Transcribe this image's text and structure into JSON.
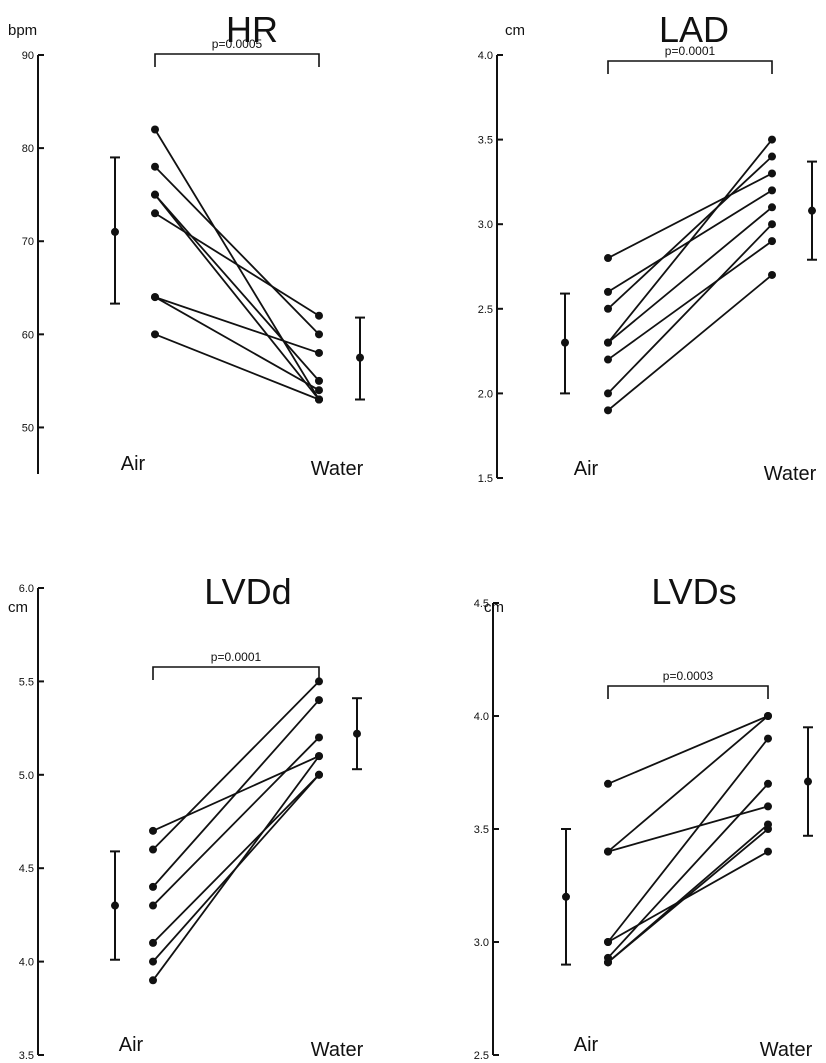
{
  "chart_data": [
    {
      "type": "line",
      "title": "HR",
      "ylabel": "bpm",
      "ylim": [
        45,
        90
      ],
      "yticks": [
        "90",
        "80",
        "70",
        "60",
        "50"
      ],
      "categories": [
        "Air",
        "Water"
      ],
      "p_value": "p=0.0005",
      "pairs": [
        [
          82,
          53
        ],
        [
          78,
          60
        ],
        [
          75,
          55
        ],
        [
          75,
          53
        ],
        [
          73,
          62
        ],
        [
          64,
          58
        ],
        [
          64,
          54
        ],
        [
          60,
          53
        ]
      ],
      "mean_sd": {
        "air": {
          "mean": 71,
          "low": 63.3,
          "high": 79
        },
        "water": {
          "mean": 57.5,
          "low": 53,
          "high": 61.8
        }
      }
    },
    {
      "type": "line",
      "title": "LAD",
      "ylabel": "cm",
      "ylim": [
        1.5,
        4.0
      ],
      "yticks": [
        "4.0",
        "3.5",
        "3.0",
        "2.5",
        "2.0",
        "1.5"
      ],
      "categories": [
        "Air",
        "Water"
      ],
      "p_value": "p=0.0001",
      "pairs": [
        [
          2.8,
          3.3
        ],
        [
          2.6,
          3.2
        ],
        [
          2.5,
          3.4
        ],
        [
          2.3,
          3.5
        ],
        [
          2.3,
          3.1
        ],
        [
          2.2,
          2.9
        ],
        [
          2.0,
          3.0
        ],
        [
          1.9,
          2.7
        ]
      ],
      "mean_sd": {
        "air": {
          "mean": 2.3,
          "low": 2.0,
          "high": 2.59
        },
        "water": {
          "mean": 3.08,
          "low": 2.79,
          "high": 3.37
        }
      }
    },
    {
      "type": "line",
      "title": "LVDd",
      "ylabel": "cm",
      "ylim": [
        3.5,
        6.0
      ],
      "yticks": [
        "6.0",
        "5.5",
        "5.0",
        "4.5",
        "4.0",
        "3.5"
      ],
      "categories": [
        "Air",
        "Water"
      ],
      "p_value": "p=0.0001",
      "pairs": [
        [
          4.7,
          5.1
        ],
        [
          4.6,
          5.5
        ],
        [
          4.4,
          5.4
        ],
        [
          4.3,
          5.2
        ],
        [
          4.1,
          5.0
        ],
        [
          4.0,
          5.0
        ],
        [
          3.9,
          5.1
        ]
      ],
      "mean_sd": {
        "air": {
          "mean": 4.3,
          "low": 4.01,
          "high": 4.59
        },
        "water": {
          "mean": 5.22,
          "low": 5.03,
          "high": 5.41
        }
      }
    },
    {
      "type": "line",
      "title": "LVDs",
      "ylabel": "cm",
      "ylim": [
        2.5,
        4.5
      ],
      "yticks": [
        "4.5",
        "4.0",
        "3.5",
        "3.0",
        "2.5"
      ],
      "categories": [
        "Air",
        "Water"
      ],
      "p_value": "p=0.0003",
      "pairs": [
        [
          3.7,
          4.0
        ],
        [
          3.4,
          4.0
        ],
        [
          3.4,
          3.6
        ],
        [
          3.0,
          3.9
        ],
        [
          3.0,
          3.4
        ],
        [
          2.93,
          3.7
        ],
        [
          2.91,
          3.52
        ],
        [
          2.91,
          3.5
        ]
      ],
      "mean_sd": {
        "air": {
          "mean": 3.2,
          "low": 2.9,
          "high": 3.5
        },
        "water": {
          "mean": 3.71,
          "low": 3.47,
          "high": 3.95
        }
      }
    }
  ]
}
